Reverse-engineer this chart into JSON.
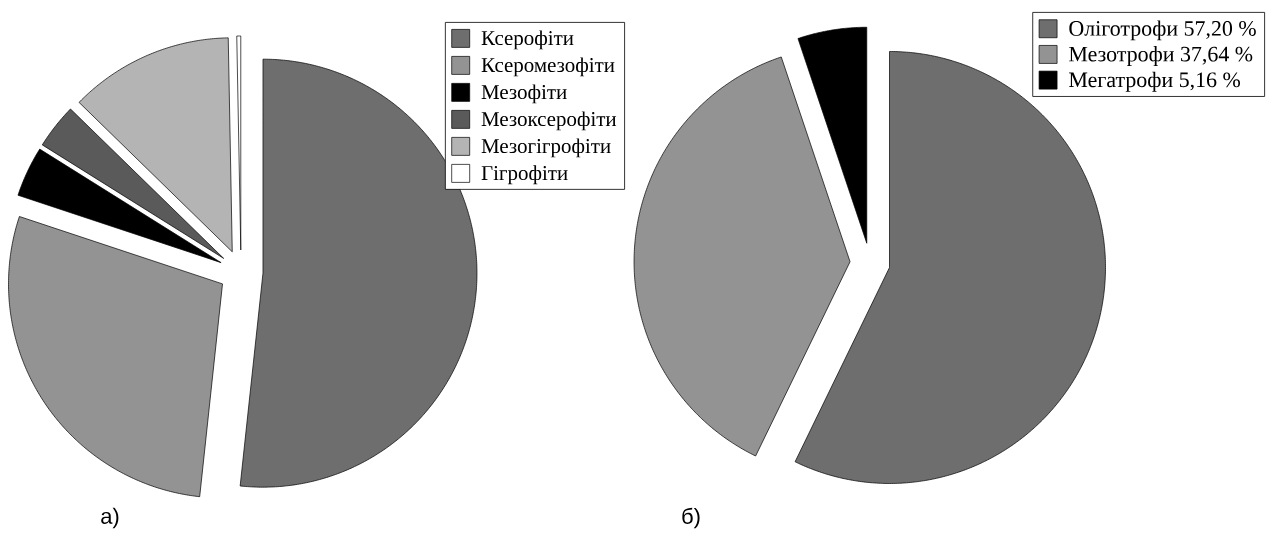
{
  "chart_data": [
    {
      "type": "pie",
      "title": "а)",
      "categories": [
        "Ксерофіти",
        "Ксеромезофіти",
        "Мезофіти",
        "Мезоксерофіти",
        "Мезогігрофіти",
        "Гігрофіти"
      ],
      "values": [
        51.7,
        28.4,
        3.8,
        3.4,
        12.4,
        0.3
      ],
      "colors": [
        "#6e6e6e",
        "#939393",
        "#000000",
        "#5a5a5a",
        "#b4b4b4",
        "#ffffff"
      ],
      "legend": "top right"
    },
    {
      "type": "pie",
      "title": "б)",
      "categories": [
        "Оліготрофи 57,20 %",
        "Мезотрофи 37,64 %",
        "Мегатрофи 5,16 %"
      ],
      "values": [
        57.2,
        37.64,
        5.16
      ],
      "colors": [
        "#6e6e6e",
        "#939393",
        "#000000"
      ],
      "legend": "top right"
    }
  ]
}
